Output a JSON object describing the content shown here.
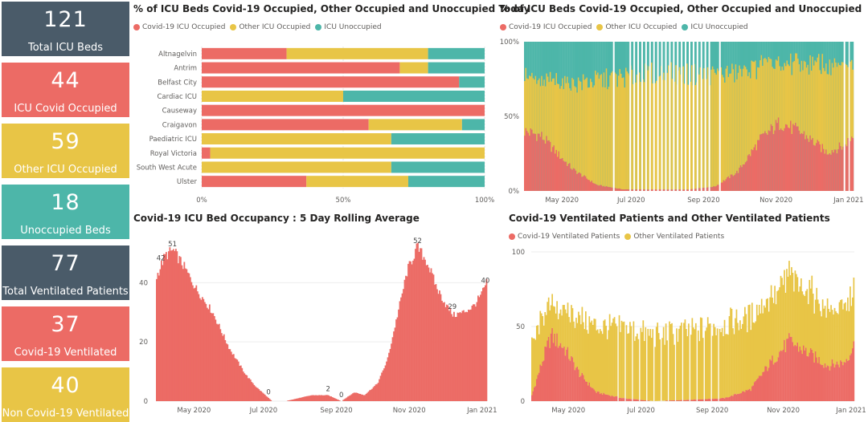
{
  "colors": {
    "covid": "#ec6b65",
    "other": "#e8c546",
    "unocc": "#4db6a9",
    "dark": "#4a5b69"
  },
  "kpis": [
    {
      "value": "121",
      "label": "Total ICU Beds",
      "color": "#4a5b69"
    },
    {
      "value": "44",
      "label": "ICU Covid Occupied",
      "color": "#ec6b65"
    },
    {
      "value": "59",
      "label": "Other ICU Occupied",
      "color": "#e8c546"
    },
    {
      "value": "18",
      "label": "Unoccupied Beds",
      "color": "#4db6a9"
    },
    {
      "value": "77",
      "label": "Total Ventilated Patients",
      "color": "#4a5b69"
    },
    {
      "value": "37",
      "label": "Covid-19 Ventilated",
      "color": "#ec6b65"
    },
    {
      "value": "40",
      "label": "Non Covid-19 Ventilated",
      "color": "#e8c546"
    }
  ],
  "chart_data": [
    {
      "type": "bar",
      "orientation": "horizontal-stacked-100",
      "title": "% of ICU Beds Covid-19 Occupied, Other Occupied and Unoccupied Today",
      "legend": [
        "Covid-19 ICU Occupied",
        "Other ICU Occupied",
        "ICU Unoccupied"
      ],
      "categories": [
        "Altnagelvin",
        "Antrim",
        "Belfast City",
        "Cardiac ICU",
        "Causeway",
        "Craigavon",
        "Paediatric ICU",
        "Royal Victoria",
        "South West Acute",
        "Ulster"
      ],
      "series": [
        {
          "name": "Covid-19 ICU Occupied",
          "values": [
            30,
            70,
            91,
            0,
            100,
            59,
            0,
            3,
            0,
            37
          ]
        },
        {
          "name": "Other ICU Occupied",
          "values": [
            50,
            10,
            0,
            50,
            0,
            33,
            67,
            97,
            67,
            36
          ]
        },
        {
          "name": "ICU Unoccupied",
          "values": [
            20,
            20,
            9,
            50,
            0,
            8,
            33,
            0,
            33,
            27
          ]
        }
      ],
      "xticks": [
        "0%",
        "50%",
        "100%"
      ],
      "xlim": [
        0,
        100
      ]
    },
    {
      "type": "area",
      "stacking": "100%",
      "title": "% of ICU Beds Covid-19 Occupied, Other Occupied and Unoccupied",
      "legend": [
        "Covid-19 ICU Occupied",
        "Other ICU Occupied",
        "ICU Unoccupied"
      ],
      "yticks": [
        "0%",
        "50%",
        "100%"
      ],
      "xticks": [
        "May 2020",
        "Jul 2020",
        "Sep 2020",
        "Nov 2020",
        "Jan 2021"
      ],
      "anchors": [
        {
          "t": 0,
          "covid": 40,
          "other": 38
        },
        {
          "t": 0.05,
          "covid": 37,
          "other": 35
        },
        {
          "t": 0.1,
          "covid": 25,
          "other": 49
        },
        {
          "t": 0.15,
          "covid": 14,
          "other": 58
        },
        {
          "t": 0.22,
          "covid": 4,
          "other": 70
        },
        {
          "t": 0.3,
          "covid": 1,
          "other": 75
        },
        {
          "t": 0.4,
          "covid": 1,
          "other": 78
        },
        {
          "t": 0.5,
          "covid": 1,
          "other": 77
        },
        {
          "t": 0.58,
          "covid": 3,
          "other": 75
        },
        {
          "t": 0.65,
          "covid": 13,
          "other": 66
        },
        {
          "t": 0.72,
          "covid": 35,
          "other": 49
        },
        {
          "t": 0.78,
          "covid": 46,
          "other": 39
        },
        {
          "t": 0.85,
          "covid": 38,
          "other": 47
        },
        {
          "t": 0.92,
          "covid": 26,
          "other": 58
        },
        {
          "t": 0.97,
          "covid": 30,
          "other": 54
        },
        {
          "t": 1,
          "covid": 37,
          "other": 48
        }
      ]
    },
    {
      "type": "bar",
      "title": "Covid-19 ICU Bed Occupancy : 5 Day Rolling Average",
      "yticks": [
        "0",
        "20",
        "40"
      ],
      "ylim": [
        0,
        55
      ],
      "xticks": [
        "May 2020",
        "Jul 2020",
        "Sep 2020",
        "Nov 2020",
        "Jan 2021"
      ],
      "data_labels": [
        {
          "t": 0.05,
          "label": "51"
        },
        {
          "t": 0.015,
          "label": "42"
        },
        {
          "t": 0.34,
          "label": "0"
        },
        {
          "t": 0.52,
          "label": "2"
        },
        {
          "t": 0.56,
          "label": "0"
        },
        {
          "t": 0.79,
          "label": "52"
        },
        {
          "t": 0.895,
          "label": "29"
        },
        {
          "t": 0.995,
          "label": "40"
        }
      ],
      "anchors": [
        {
          "t": 0,
          "v": 42
        },
        {
          "t": 0.025,
          "v": 49
        },
        {
          "t": 0.05,
          "v": 51
        },
        {
          "t": 0.08,
          "v": 46
        },
        {
          "t": 0.12,
          "v": 38
        },
        {
          "t": 0.17,
          "v": 30
        },
        {
          "t": 0.22,
          "v": 18
        },
        {
          "t": 0.27,
          "v": 9
        },
        {
          "t": 0.3,
          "v": 5
        },
        {
          "t": 0.33,
          "v": 2
        },
        {
          "t": 0.35,
          "v": 0
        },
        {
          "t": 0.39,
          "v": 0
        },
        {
          "t": 0.43,
          "v": 1
        },
        {
          "t": 0.47,
          "v": 2
        },
        {
          "t": 0.52,
          "v": 2
        },
        {
          "t": 0.54,
          "v": 1
        },
        {
          "t": 0.56,
          "v": 0
        },
        {
          "t": 0.6,
          "v": 3
        },
        {
          "t": 0.63,
          "v": 2
        },
        {
          "t": 0.67,
          "v": 6
        },
        {
          "t": 0.7,
          "v": 14
        },
        {
          "t": 0.73,
          "v": 29
        },
        {
          "t": 0.76,
          "v": 44
        },
        {
          "t": 0.79,
          "v": 52
        },
        {
          "t": 0.82,
          "v": 47
        },
        {
          "t": 0.85,
          "v": 38
        },
        {
          "t": 0.88,
          "v": 32
        },
        {
          "t": 0.9,
          "v": 29
        },
        {
          "t": 0.93,
          "v": 30
        },
        {
          "t": 0.96,
          "v": 32
        },
        {
          "t": 0.985,
          "v": 36
        },
        {
          "t": 1,
          "v": 40
        }
      ]
    },
    {
      "type": "bar",
      "stacking": "stacked",
      "title": "Covid-19 Ventilated Patients and Other Ventilated Patients",
      "legend": [
        "Covid-19 Ventilated Patients",
        "Other Ventilated Patients"
      ],
      "yticks": [
        "0",
        "50",
        "100"
      ],
      "ylim": [
        0,
        100
      ],
      "xticks": [
        "May 2020",
        "Jul 2020",
        "Sep 2020",
        "Nov 2020",
        "Jan 2021"
      ],
      "anchors": [
        {
          "t": 0,
          "covid": 4,
          "other": 33
        },
        {
          "t": 0.03,
          "covid": 25,
          "other": 30
        },
        {
          "t": 0.06,
          "covid": 44,
          "other": 20
        },
        {
          "t": 0.1,
          "covid": 36,
          "other": 25
        },
        {
          "t": 0.15,
          "covid": 18,
          "other": 37
        },
        {
          "t": 0.2,
          "covid": 6,
          "other": 44
        },
        {
          "t": 0.28,
          "covid": 2,
          "other": 47
        },
        {
          "t": 0.38,
          "covid": 0,
          "other": 44
        },
        {
          "t": 0.5,
          "covid": 1,
          "other": 46
        },
        {
          "t": 0.6,
          "covid": 2,
          "other": 50
        },
        {
          "t": 0.68,
          "covid": 8,
          "other": 48
        },
        {
          "t": 0.75,
          "covid": 28,
          "other": 44
        },
        {
          "t": 0.8,
          "covid": 40,
          "other": 42
        },
        {
          "t": 0.86,
          "covid": 32,
          "other": 42
        },
        {
          "t": 0.92,
          "covid": 24,
          "other": 38
        },
        {
          "t": 0.97,
          "covid": 26,
          "other": 36
        },
        {
          "t": 1,
          "covid": 37,
          "other": 40
        }
      ]
    }
  ]
}
